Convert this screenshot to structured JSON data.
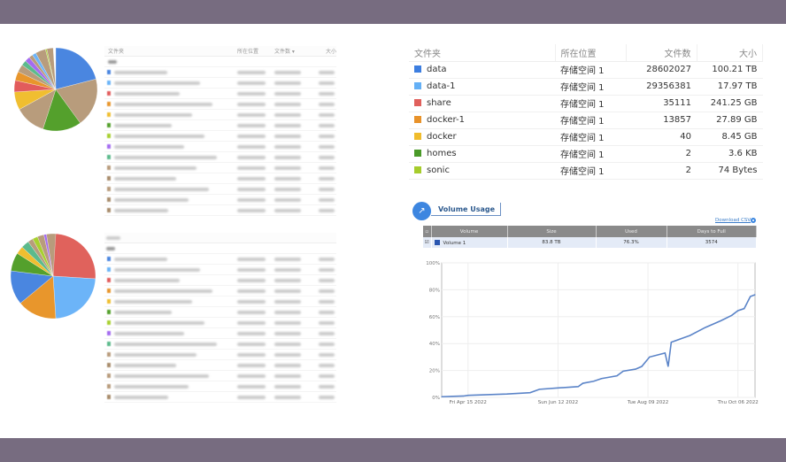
{
  "left_top": {
    "headers": [
      "文件夹",
      "所在位置",
      "文件数 ▾",
      "大小"
    ],
    "pie": [
      {
        "c": "#4a86e0",
        "v": 0.21
      },
      {
        "c": "#b89c7c",
        "v": 0.19
      },
      {
        "c": "#54a02c",
        "v": 0.15
      },
      {
        "c": "#b89c7c",
        "v": 0.12
      },
      {
        "c": "#f0be30",
        "v": 0.07
      },
      {
        "c": "#e25c5c",
        "v": 0.045
      },
      {
        "c": "#e8962c",
        "v": 0.035
      },
      {
        "c": "#b89c7c",
        "v": 0.03
      },
      {
        "c": "#5cba8c",
        "v": 0.02
      },
      {
        "c": "#a46cf0",
        "v": 0.02
      },
      {
        "c": "#b89c7c",
        "v": 0.015
      },
      {
        "c": "#6cb4f8",
        "v": 0.015
      },
      {
        "c": "#b89c7c",
        "v": 0.04
      },
      {
        "c": "#a8d030",
        "v": 0.005
      },
      {
        "c": "#b89c7c",
        "v": 0.025
      }
    ],
    "rows": [
      "#4a86e0",
      "#6cb4f8",
      "#e25c5c",
      "#e8962c",
      "#f0be30",
      "#54a02c",
      "#a8d030",
      "#a46cf0",
      "#5cba8c",
      "#b89c7c",
      "#a88c6c",
      "#b89c7c",
      "#a88c6c",
      "#a88c6c"
    ]
  },
  "left_bottom": {
    "pie": [
      {
        "c": "#e0625c",
        "v": 0.26
      },
      {
        "c": "#6cb4f8",
        "v": 0.23
      },
      {
        "c": "#e8962c",
        "v": 0.15
      },
      {
        "c": "#4a86e0",
        "v": 0.13
      },
      {
        "c": "#54a02c",
        "v": 0.07
      },
      {
        "c": "#f0be30",
        "v": 0.03
      },
      {
        "c": "#5cba8c",
        "v": 0.03
      },
      {
        "c": "#b89c7c",
        "v": 0.02
      },
      {
        "c": "#a8d030",
        "v": 0.02
      },
      {
        "c": "#b89c7c",
        "v": 0.025
      },
      {
        "c": "#a46cf0",
        "v": 0.01
      },
      {
        "c": "#b89c7c",
        "v": 0.035
      }
    ],
    "rows": [
      "#4a86e0",
      "#6cb4f8",
      "#e25c5c",
      "#e8962c",
      "#f0be30",
      "#54a02c",
      "#a8d030",
      "#a46cf0",
      "#5cba8c",
      "#b89c7c",
      "#a88c6c",
      "#b89c7c",
      "#b89c7c",
      "#a88c6c"
    ]
  },
  "shares": {
    "headers": [
      "文件夹",
      "所在位置",
      "文件数",
      "大小"
    ],
    "rows": [
      {
        "color": "#3d7ee0",
        "name": "data",
        "loc": "存储空间 1",
        "files": "28602027",
        "size": "100.21 TB"
      },
      {
        "color": "#64b0f6",
        "name": "data-1",
        "loc": "存储空间 1",
        "files": "29356381",
        "size": "17.97 TB"
      },
      {
        "color": "#e0605c",
        "name": "share",
        "loc": "存储空间 1",
        "files": "35111",
        "size": "241.25 GB"
      },
      {
        "color": "#e8922a",
        "name": "docker-1",
        "loc": "存储空间 1",
        "files": "13857",
        "size": "27.89 GB"
      },
      {
        "color": "#f0bc2c",
        "name": "docker",
        "loc": "存储空间 1",
        "files": "40",
        "size": "8.45 GB"
      },
      {
        "color": "#4a9a28",
        "name": "homes",
        "loc": "存储空间 1",
        "files": "2",
        "size": "3.6 KB"
      },
      {
        "color": "#a6cc2c",
        "name": "sonic",
        "loc": "存储空间 1",
        "files": "2",
        "size": "74 Bytes"
      }
    ]
  },
  "volume": {
    "title": "Volume Usage",
    "download": "Download CSV",
    "headers": [
      "Volume",
      "Size",
      "Used",
      "Days to Full"
    ],
    "row": {
      "name": "Volume 1",
      "size": "83.8 TB",
      "used": "76.3%",
      "days": "3574"
    }
  },
  "chart_data": {
    "type": "line",
    "ylim": [
      0,
      100
    ],
    "yticks": [
      "0%",
      "20%",
      "40%",
      "60%",
      "80%",
      "100%"
    ],
    "xticks": [
      "Fri Apr 15 2022",
      "Sun Jun 12 2022",
      "Tue Aug 09 2022",
      "Thu Oct 06 2022"
    ],
    "xlim": [
      "2022-03-29",
      "2022-10-17"
    ],
    "grid": true,
    "color": "#5b84c8",
    "series": [
      {
        "x": [
          "2022-03-29",
          "2022-04-12",
          "2022-04-15",
          "2022-05-10",
          "2022-05-25",
          "2022-05-31",
          "2022-06-12",
          "2022-06-25",
          "2022-06-28",
          "2022-07-05",
          "2022-07-10",
          "2022-07-20",
          "2022-07-24",
          "2022-08-01",
          "2022-08-05",
          "2022-08-10",
          "2022-08-20",
          "2022-08-22",
          "2022-08-24",
          "2022-09-05",
          "2022-09-15",
          "2022-09-25",
          "2022-10-02",
          "2022-10-06",
          "2022-10-10",
          "2022-10-14",
          "2022-10-17"
        ],
        "y": [
          0.5,
          1,
          1.5,
          2.5,
          3.5,
          6,
          7,
          8,
          10.5,
          12,
          14,
          16,
          19.5,
          21,
          23,
          30,
          33,
          23,
          41,
          46,
          52,
          57,
          61,
          64.5,
          66,
          75,
          76.3
        ]
      }
    ]
  }
}
